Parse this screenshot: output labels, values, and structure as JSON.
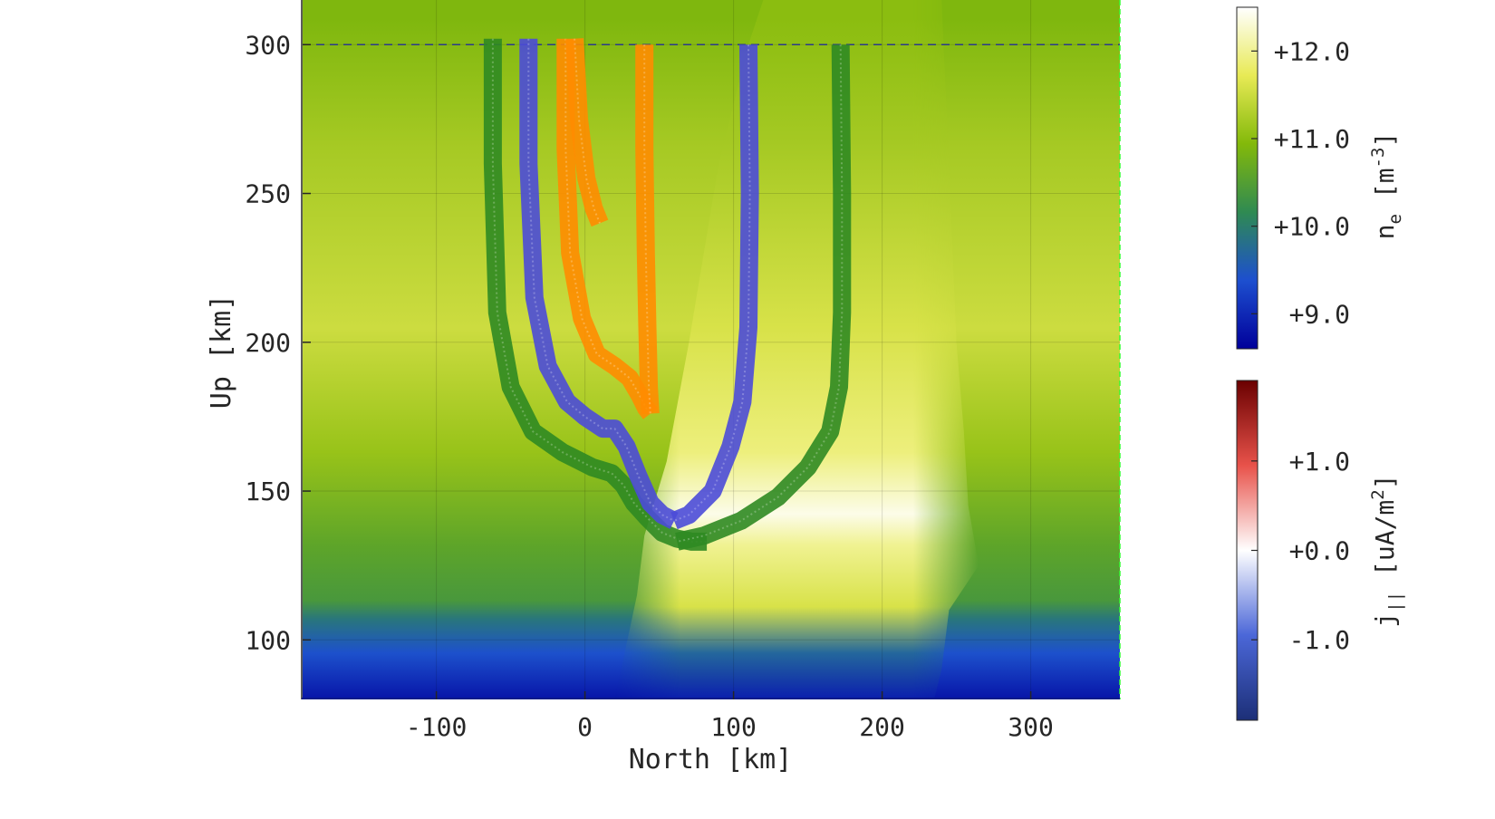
{
  "chart_data": {
    "type": "heatmap",
    "xlabel": "North [km]",
    "ylabel": "Up [km]",
    "xlim": [
      -190,
      360
    ],
    "ylim": [
      80,
      315
    ],
    "grid": true,
    "x_ticks": [
      -100,
      0,
      100,
      200,
      300
    ],
    "y_ticks": [
      100,
      150,
      200,
      250,
      300
    ],
    "x_tick_labels": [
      "-100",
      "0",
      "100",
      "200",
      "300"
    ],
    "y_tick_labels": [
      "100",
      "150",
      "200",
      "250",
      "300"
    ],
    "reference_line_up_km": 300,
    "colorbars": [
      {
        "quantity": "n",
        "subscript": "e",
        "unit_prefix": "[m",
        "unit_sup": "-3",
        "unit_suffix": "]",
        "range": [
          8.6,
          12.5
        ],
        "ticks": [
          9.0,
          10.0,
          11.0,
          12.0
        ],
        "tick_labels": [
          "+9.0",
          "+10.0",
          "+11.0",
          "+12.0"
        ],
        "colors": [
          "#00009a",
          "#1d4fcf",
          "#2f8a52",
          "#83b90a",
          "#e8ea55",
          "#ffffff"
        ]
      },
      {
        "quantity": "j",
        "subscript": "||",
        "unit_prefix": "[uA/m",
        "unit_sup": "2",
        "unit_suffix": "]",
        "range": [
          -1.9,
          1.9
        ],
        "ticks": [
          -1.0,
          0.0,
          1.0
        ],
        "tick_labels": [
          "-1.0",
          "+0.0",
          "+1.0"
        ],
        "colors": [
          "#1c2f77",
          "#4b67d8",
          "#ffffff",
          "#e8524a",
          "#6a0000"
        ]
      }
    ],
    "density_profile": {
      "description_units": "log10 n_e [m^-3] versus Up [km]",
      "background": [
        [
          80,
          8.8
        ],
        [
          95,
          9.4
        ],
        [
          106,
          9.9
        ],
        [
          112,
          10.4
        ],
        [
          130,
          10.6
        ],
        [
          160,
          11.1
        ],
        [
          200,
          11.5
        ],
        [
          260,
          11.2
        ],
        [
          300,
          10.9
        ],
        [
          315,
          10.9
        ]
      ],
      "auroral_region": [
        [
          80,
          8.9
        ],
        [
          95,
          9.7
        ],
        [
          110,
          11.6
        ],
        [
          130,
          12.0
        ],
        [
          140,
          12.4
        ],
        [
          160,
          11.9
        ],
        [
          200,
          11.6
        ],
        [
          260,
          11.2
        ],
        [
          300,
          11.0
        ]
      ]
    },
    "series": [
      {
        "name": "",
        "color": "#2f8a22",
        "tubes": [
          {
            "x": [
              -62,
              -62,
              -59,
              -50,
              -35,
              -15,
              5,
              18,
              26,
              33,
              42,
              52,
              62,
              72,
              82
            ],
            "y": [
              302,
              260,
              210,
              185,
              170,
              163,
              158,
              156,
              152,
              146,
              141,
              136,
              134,
              133,
              133
            ]
          },
          {
            "x": [
              172,
              173,
              173,
              171,
              165,
              150,
              130,
              105,
              80,
              62
            ],
            "y": [
              300,
              250,
              210,
              185,
              170,
              158,
              148,
              140,
              135,
              133
            ]
          }
        ]
      },
      {
        "name": "",
        "color": "#4b4bd8",
        "tubes": [
          {
            "x": [
              -38,
              -38,
              -34,
              -25,
              -12,
              0,
              12,
              20,
              28,
              36,
              44,
              52,
              60
            ],
            "y": [
              302,
              260,
              215,
              192,
              180,
              175,
              171,
              171,
              165,
              155,
              146,
              142,
              140
            ]
          },
          {
            "x": [
              110,
              111,
              110,
              106,
              98,
              86,
              70,
              60
            ],
            "y": [
              300,
              250,
              205,
              180,
              165,
              150,
              142,
              140
            ]
          }
        ]
      },
      {
        "name": "",
        "color": "#ff8c00",
        "tubes": [
          {
            "x": [
              -13,
              -13,
              -10,
              -2,
              8,
              20,
              30,
              37,
              41,
              44
            ],
            "y": [
              302,
              265,
              230,
              208,
              196,
              192,
              188,
              182,
              178,
              176
            ]
          },
          {
            "x": [
              -7,
              -4,
              1,
              6,
              10
            ],
            "y": [
              302,
              275,
              255,
              245,
              240
            ]
          },
          {
            "x": [
              40,
              40,
              41,
              42,
              43,
              44
            ],
            "y": [
              300,
              265,
              230,
              205,
              185,
              176
            ]
          }
        ]
      }
    ]
  }
}
